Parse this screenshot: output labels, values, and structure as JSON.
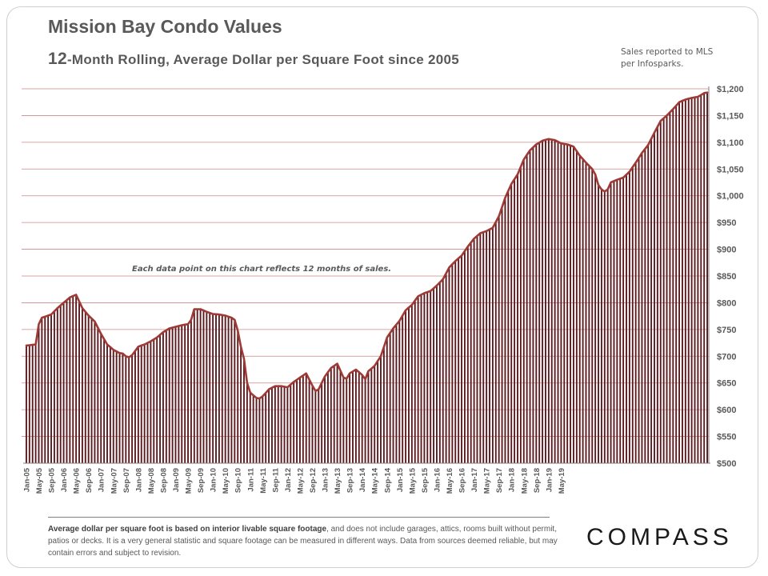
{
  "header": {
    "title": "Mission Bay Condo Values",
    "subtitle_lead": "12",
    "subtitle_rest": "-Month Rolling, Average Dollar per Square Foot since 2005",
    "source_line1": "Sales reported to MLS",
    "source_line2": "per Infosparks."
  },
  "chart_data": {
    "type": "bar",
    "overlay": "line",
    "title": "Mission Bay Condo Values",
    "subtitle": "12-Month Rolling, Average Dollar per Square Foot since 2005",
    "ylabel": "",
    "xlabel": "",
    "ylim": [
      500,
      1200
    ],
    "y_ticks": [
      "$500",
      "$550",
      "$600",
      "$650",
      "$700",
      "$750",
      "$800",
      "$850",
      "$900",
      "$950",
      "$1,000",
      "$1,050",
      "$1,100",
      "$1,150",
      "$1,200"
    ],
    "x_labels": [
      "Jan-05",
      "May-05",
      "Sep-05",
      "Jan-06",
      "May-06",
      "Sep-06",
      "Jan-07",
      "May-07",
      "Sep-07",
      "Jan-08",
      "May-08",
      "Sep-08",
      "Jan-09",
      "May-09",
      "Sep-09",
      "Jan-10",
      "May-10",
      "Sep-10",
      "Jan-11",
      "May-11",
      "Sep-11",
      "Jan-12",
      "May-12",
      "Sep-12",
      "Jan-13",
      "May-13",
      "Sep-13",
      "Jan-14",
      "May-14",
      "Sep-14",
      "Jan-15",
      "May-15",
      "Sep-15",
      "Jan-16",
      "May-16",
      "Sep-16",
      "Jan-17",
      "May-17",
      "Sep-17",
      "Jan-18",
      "May-18",
      "Sep-18",
      "Jan-19",
      "May-19"
    ],
    "anchors": [
      [
        0,
        720
      ],
      [
        3,
        722
      ],
      [
        4,
        760
      ],
      [
        5,
        772
      ],
      [
        7,
        776
      ],
      [
        8,
        778
      ],
      [
        10,
        790
      ],
      [
        12,
        800
      ],
      [
        14,
        810
      ],
      [
        16,
        815
      ],
      [
        18,
        790
      ],
      [
        20,
        776
      ],
      [
        22,
        765
      ],
      [
        24,
        742
      ],
      [
        26,
        722
      ],
      [
        28,
        712
      ],
      [
        30,
        706
      ],
      [
        31,
        705
      ],
      [
        32,
        700
      ],
      [
        33,
        698
      ],
      [
        34,
        702
      ],
      [
        36,
        718
      ],
      [
        38,
        722
      ],
      [
        40,
        728
      ],
      [
        42,
        735
      ],
      [
        44,
        745
      ],
      [
        46,
        752
      ],
      [
        48,
        755
      ],
      [
        50,
        758
      ],
      [
        52,
        760
      ],
      [
        53,
        768
      ],
      [
        54,
        788
      ],
      [
        56,
        788
      ],
      [
        58,
        783
      ],
      [
        60,
        779
      ],
      [
        62,
        778
      ],
      [
        64,
        776
      ],
      [
        66,
        772
      ],
      [
        67,
        768
      ],
      [
        68,
        748
      ],
      [
        69,
        718
      ],
      [
        70,
        695
      ],
      [
        71,
        650
      ],
      [
        72,
        632
      ],
      [
        74,
        622
      ],
      [
        75,
        621
      ],
      [
        76,
        625
      ],
      [
        78,
        638
      ],
      [
        80,
        644
      ],
      [
        82,
        644
      ],
      [
        84,
        642
      ],
      [
        86,
        652
      ],
      [
        88,
        660
      ],
      [
        90,
        668
      ],
      [
        92,
        645
      ],
      [
        93,
        635
      ],
      [
        94,
        638
      ],
      [
        96,
        662
      ],
      [
        98,
        678
      ],
      [
        100,
        686
      ],
      [
        102,
        660
      ],
      [
        103,
        658
      ],
      [
        104,
        668
      ],
      [
        106,
        675
      ],
      [
        108,
        665
      ],
      [
        109,
        657
      ],
      [
        110,
        672
      ],
      [
        112,
        682
      ],
      [
        114,
        700
      ],
      [
        116,
        735
      ],
      [
        118,
        752
      ],
      [
        120,
        766
      ],
      [
        122,
        786
      ],
      [
        124,
        796
      ],
      [
        126,
        812
      ],
      [
        128,
        818
      ],
      [
        130,
        822
      ],
      [
        132,
        832
      ],
      [
        134,
        844
      ],
      [
        136,
        866
      ],
      [
        138,
        878
      ],
      [
        140,
        888
      ],
      [
        142,
        905
      ],
      [
        144,
        920
      ],
      [
        146,
        930
      ],
      [
        148,
        934
      ],
      [
        150,
        940
      ],
      [
        152,
        962
      ],
      [
        154,
        996
      ],
      [
        156,
        1022
      ],
      [
        158,
        1040
      ],
      [
        160,
        1068
      ],
      [
        162,
        1085
      ],
      [
        164,
        1096
      ],
      [
        166,
        1103
      ],
      [
        168,
        1106
      ],
      [
        170,
        1104
      ],
      [
        172,
        1098
      ],
      [
        174,
        1096
      ],
      [
        176,
        1092
      ],
      [
        178,
        1075
      ],
      [
        180,
        1062
      ],
      [
        182,
        1050
      ],
      [
        183,
        1040
      ],
      [
        184,
        1020
      ],
      [
        185,
        1012
      ],
      [
        186,
        1008
      ],
      [
        187,
        1012
      ],
      [
        188,
        1025
      ],
      [
        190,
        1030
      ],
      [
        192,
        1034
      ],
      [
        194,
        1045
      ],
      [
        196,
        1062
      ],
      [
        198,
        1080
      ],
      [
        200,
        1095
      ],
      [
        202,
        1118
      ],
      [
        204,
        1140
      ],
      [
        206,
        1150
      ],
      [
        208,
        1162
      ],
      [
        210,
        1175
      ],
      [
        212,
        1180
      ],
      [
        214,
        1183
      ],
      [
        216,
        1185
      ],
      [
        218,
        1192
      ],
      [
        219,
        1193
      ]
    ]
  },
  "annotation": "Each data point on this chart reflects 12 months of sales.",
  "footer": {
    "note_bold": "Average dollar per square foot is based on interior livable square footage",
    "note_rest": ", and does not include garages, attics, rooms built without permit, patios or decks. It is a very general statistic and square footage can be measured in different ways. Data from sources deemed reliable, but may contain errors and subject to revision.",
    "logo": "COMPASS"
  },
  "colors": {
    "bar": "#5c1a1f",
    "line": "#9e3a35",
    "gridline": "#cc8a8a",
    "text": "#595959",
    "axis": "#7f7f7f"
  }
}
